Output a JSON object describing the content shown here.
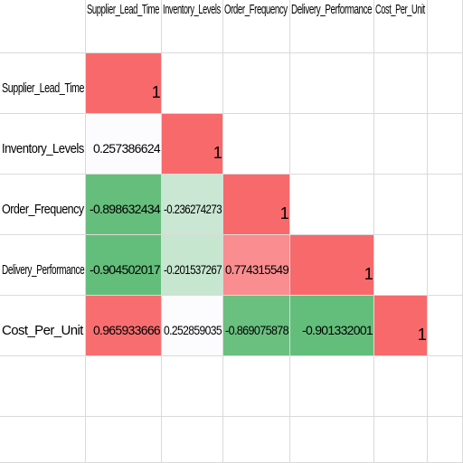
{
  "headers": [
    "Supplier_Lead_Time",
    "Inventory_Levels",
    "Order_Frequency",
    "Delivery_Performance",
    "Cost_Per_Unit"
  ],
  "rows": [
    {
      "label": "Supplier_Lead_Time",
      "cells": [
        {
          "text": "1",
          "color": "#f8696b"
        },
        null,
        null,
        null,
        null
      ]
    },
    {
      "label": "Inventory_Levels",
      "cells": [
        {
          "text": "0.257386624",
          "color": "#fcfcff"
        },
        {
          "text": "1",
          "color": "#f8696b"
        },
        null,
        null,
        null
      ]
    },
    {
      "label": "Order_Frequency",
      "cells": [
        {
          "text": "-0.898632434",
          "color": "#66be7c"
        },
        {
          "text": "-0.236274273",
          "color": "#c9e7d2"
        },
        {
          "text": "1",
          "color": "#f8696b"
        },
        null,
        null
      ]
    },
    {
      "label": "Delivery_Performance",
      "cells": [
        {
          "text": "-0.904502017",
          "color": "#63be7b"
        },
        {
          "text": "-0.201537267",
          "color": "#c6e6cf"
        },
        {
          "text": "0.774315549",
          "color": "#f98d8f"
        },
        {
          "text": "1",
          "color": "#f8696b"
        },
        null
      ]
    },
    {
      "label": "Cost_Per_Unit",
      "cells": [
        {
          "text": "0.965933666",
          "color": "#f86e70"
        },
        {
          "text": "0.252859035",
          "color": "#fcfcff"
        },
        {
          "text": "-0.869075878",
          "color": "#6ac07f"
        },
        {
          "text": "-0.901332001",
          "color": "#63be7b"
        },
        {
          "text": "1",
          "color": "#f8696b"
        }
      ]
    }
  ]
}
